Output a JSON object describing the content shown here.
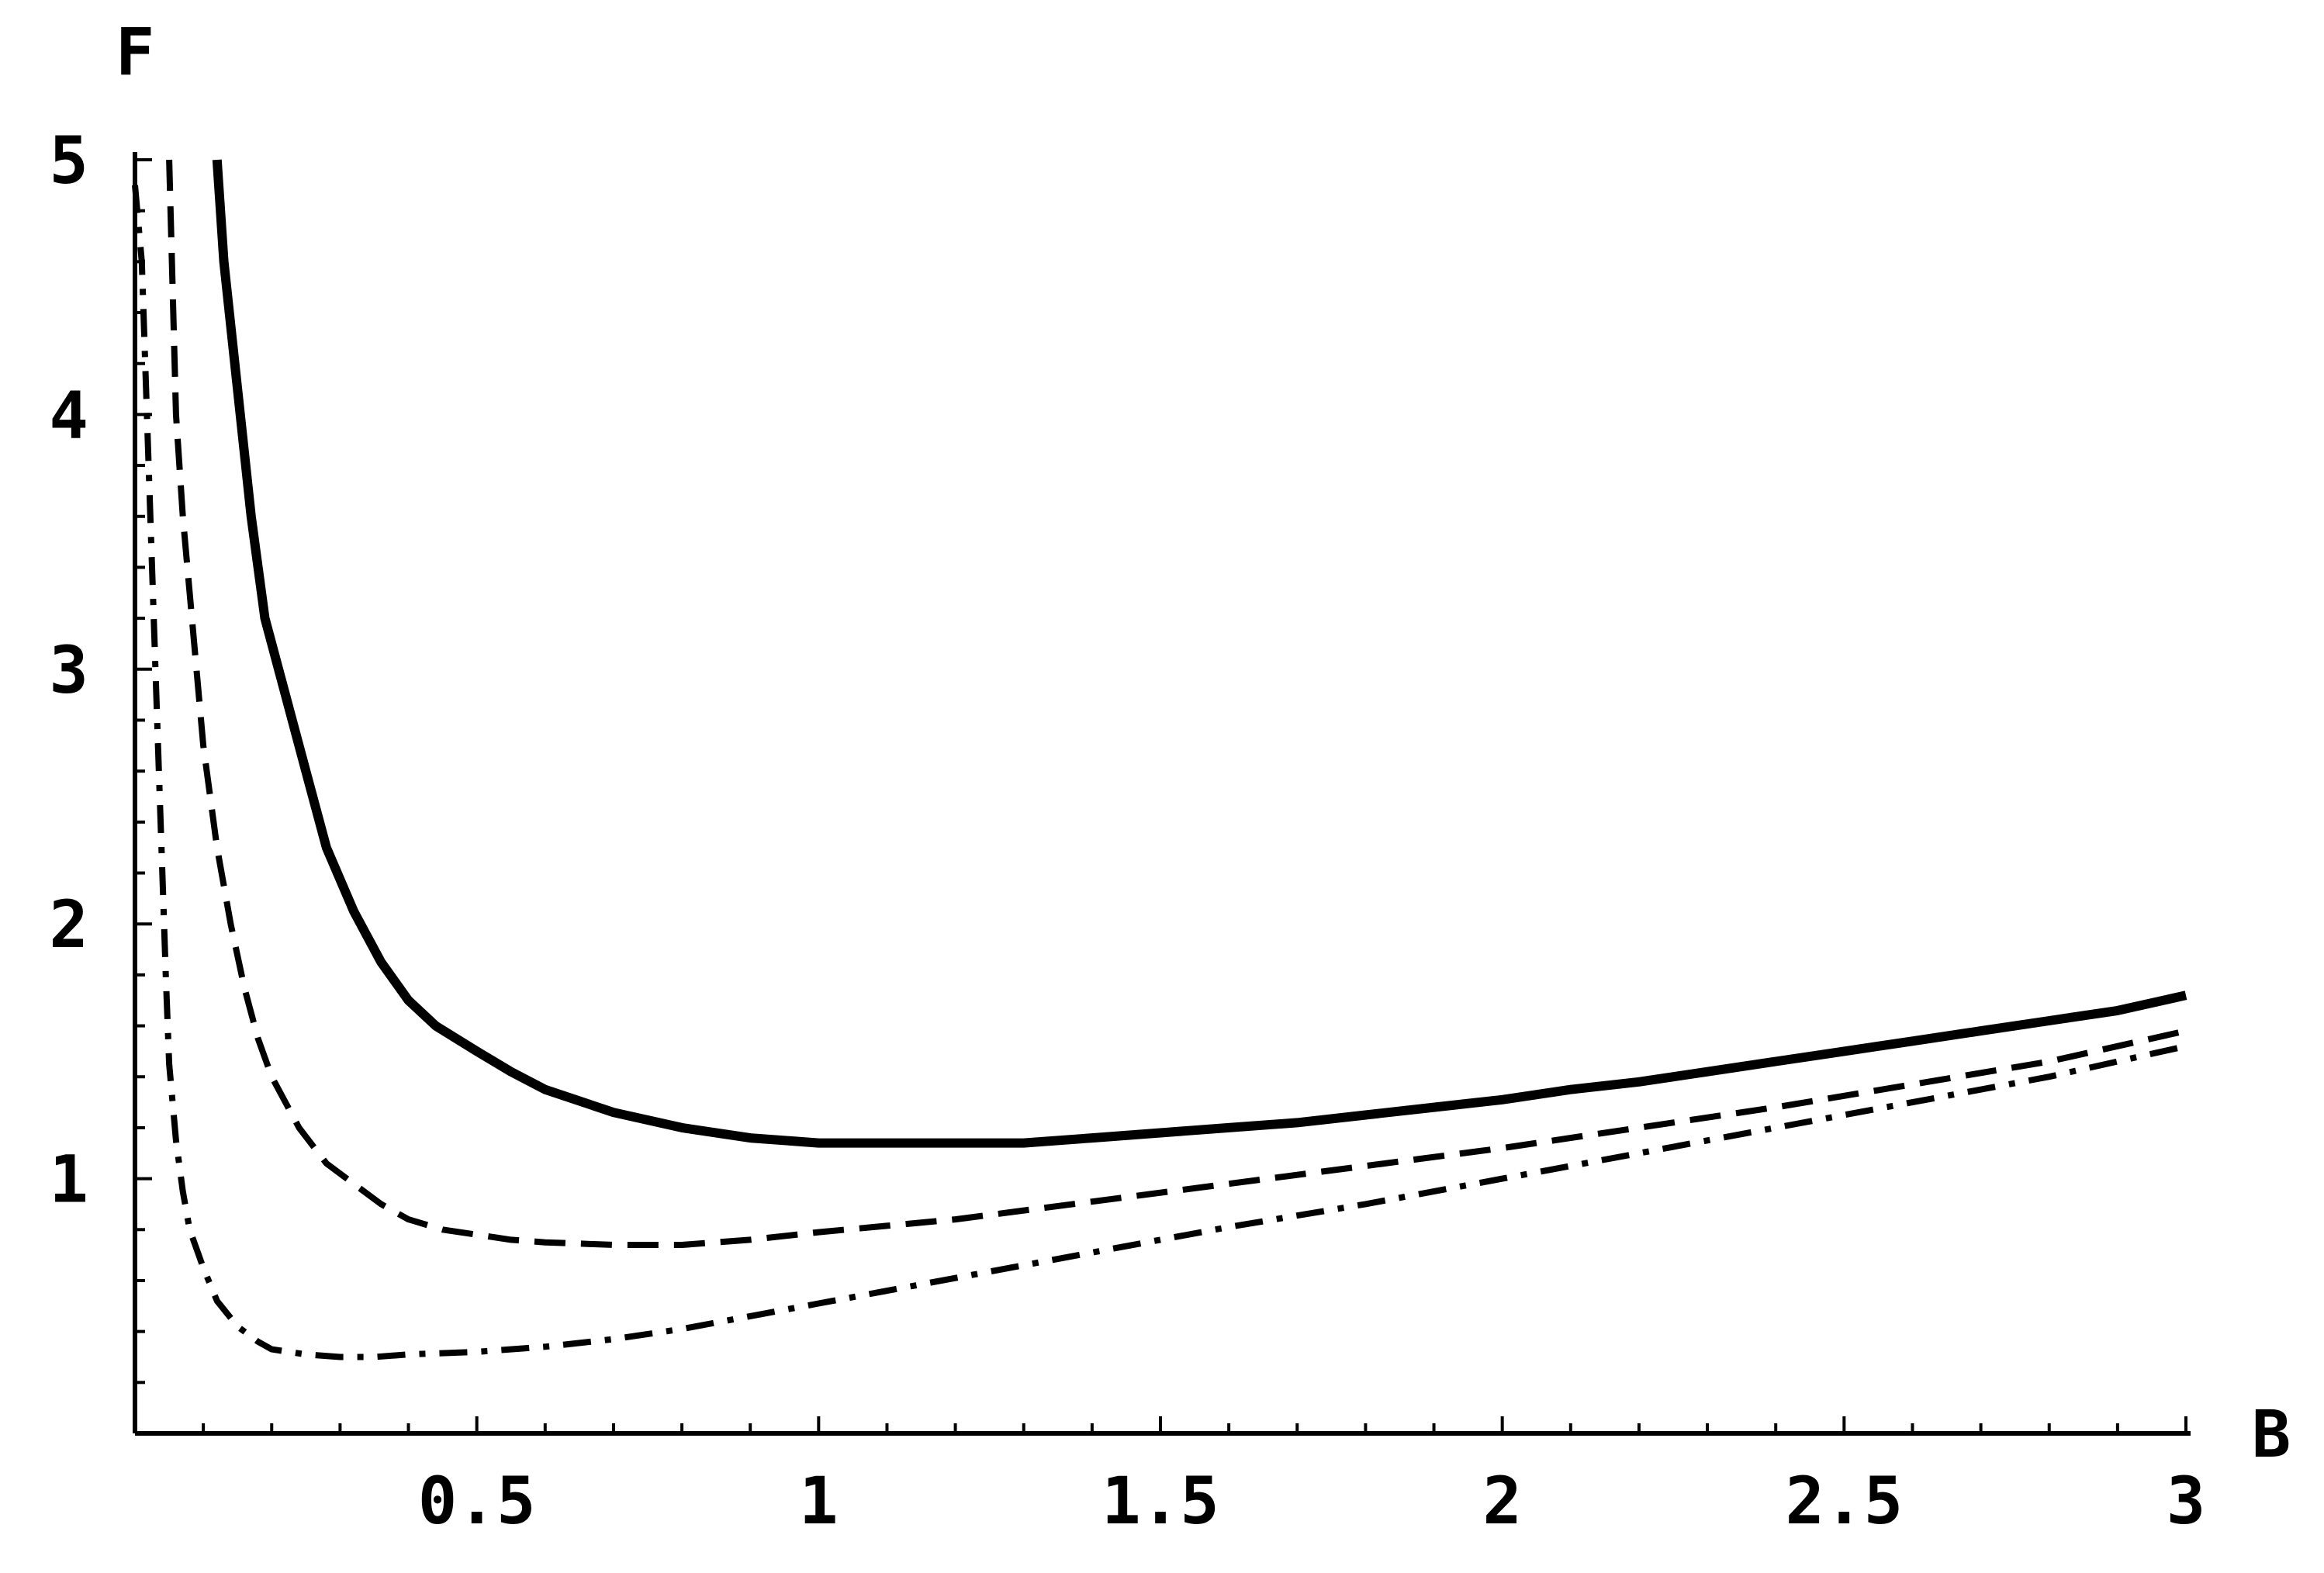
{
  "chart_data": {
    "type": "line",
    "xlabel": "B",
    "ylabel": "F",
    "xlim": [
      0,
      3
    ],
    "ylim": [
      0,
      5
    ],
    "xticks": [
      0.5,
      1,
      1.5,
      2,
      2.5,
      3
    ],
    "xtick_labels": [
      "0.5",
      "1",
      "1.5",
      "2",
      "2.5",
      "3"
    ],
    "yticks": [
      1,
      2,
      3,
      4,
      5
    ],
    "ytick_labels": [
      "1",
      "2",
      "3",
      "4",
      "5"
    ],
    "grid": false,
    "series": [
      {
        "style": "solid",
        "x": [
          0.12,
          0.13,
          0.15,
          0.17,
          0.19,
          0.22,
          0.25,
          0.28,
          0.32,
          0.36,
          0.4,
          0.44,
          0.5,
          0.55,
          0.6,
          0.7,
          0.8,
          0.9,
          1.0,
          1.1,
          1.2,
          1.3,
          1.4,
          1.5,
          1.6,
          1.7,
          1.8,
          1.9,
          2.0,
          2.1,
          2.2,
          2.3,
          2.4,
          2.5,
          2.6,
          2.7,
          2.8,
          2.9,
          3.0
        ],
        "y": [
          5.0,
          4.6,
          4.1,
          3.6,
          3.2,
          2.9,
          2.6,
          2.3,
          2.05,
          1.85,
          1.7,
          1.6,
          1.5,
          1.42,
          1.35,
          1.26,
          1.2,
          1.16,
          1.14,
          1.14,
          1.14,
          1.14,
          1.16,
          1.18,
          1.2,
          1.22,
          1.25,
          1.28,
          1.31,
          1.35,
          1.38,
          1.42,
          1.46,
          1.5,
          1.54,
          1.58,
          1.62,
          1.66,
          1.72
        ]
      },
      {
        "style": "dashed",
        "x": [
          0.05,
          0.055,
          0.06,
          0.07,
          0.08,
          0.09,
          0.1,
          0.12,
          0.14,
          0.16,
          0.18,
          0.2,
          0.24,
          0.28,
          0.32,
          0.36,
          0.4,
          0.45,
          0.5,
          0.55,
          0.6,
          0.7,
          0.8,
          0.9,
          1.0,
          1.2,
          1.4,
          1.6,
          1.8,
          2.0,
          2.2,
          2.4,
          2.6,
          2.8,
          3.0
        ],
        "y": [
          5.0,
          4.5,
          4.0,
          3.6,
          3.3,
          3.0,
          2.7,
          2.3,
          2.0,
          1.75,
          1.55,
          1.4,
          1.2,
          1.06,
          0.98,
          0.9,
          0.84,
          0.8,
          0.78,
          0.76,
          0.75,
          0.74,
          0.74,
          0.76,
          0.79,
          0.84,
          0.91,
          0.98,
          1.05,
          1.12,
          1.2,
          1.28,
          1.37,
          1.46,
          1.58
        ]
      },
      {
        "style": "dashdot",
        "x": [
          0.0,
          0.01,
          0.015,
          0.02,
          0.025,
          0.03,
          0.035,
          0.04,
          0.045,
          0.05,
          0.06,
          0.07,
          0.08,
          0.1,
          0.12,
          0.15,
          0.18,
          0.2,
          0.25,
          0.3,
          0.35,
          0.4,
          0.5,
          0.6,
          0.7,
          0.8,
          0.9,
          1.0,
          1.1,
          1.2,
          1.4,
          1.6,
          1.8,
          2.0,
          2.2,
          2.4,
          2.6,
          2.8,
          3.0
        ],
        "y": [
          4.9,
          4.6,
          4.2,
          3.8,
          3.4,
          3.0,
          2.6,
          2.2,
          1.8,
          1.45,
          1.15,
          0.95,
          0.8,
          0.65,
          0.52,
          0.42,
          0.36,
          0.33,
          0.31,
          0.3,
          0.3,
          0.31,
          0.32,
          0.34,
          0.37,
          0.41,
          0.46,
          0.51,
          0.56,
          0.61,
          0.71,
          0.81,
          0.9,
          1.0,
          1.1,
          1.2,
          1.3,
          1.4,
          1.52
        ]
      }
    ]
  }
}
